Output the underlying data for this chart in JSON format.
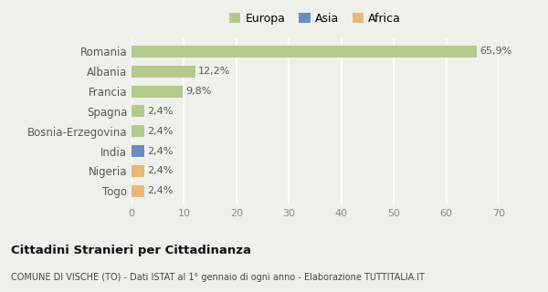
{
  "categories": [
    "Romania",
    "Albania",
    "Francia",
    "Spagna",
    "Bosnia-Erzegovina",
    "India",
    "Nigeria",
    "Togo"
  ],
  "values": [
    65.9,
    12.2,
    9.8,
    2.4,
    2.4,
    2.4,
    2.4,
    2.4
  ],
  "labels": [
    "65,9%",
    "12,2%",
    "9,8%",
    "2,4%",
    "2,4%",
    "2,4%",
    "2,4%",
    "2,4%"
  ],
  "colors": [
    "#b5c98e",
    "#b5c98e",
    "#b5c98e",
    "#b5c98e",
    "#b5c98e",
    "#6b8cbf",
    "#e8b87a",
    "#e8b87a"
  ],
  "legend_labels": [
    "Europa",
    "Asia",
    "Africa"
  ],
  "legend_colors": [
    "#b5c98e",
    "#6b8cbf",
    "#e8b87a"
  ],
  "xlim": [
    0,
    70
  ],
  "xticks": [
    0,
    10,
    20,
    30,
    40,
    50,
    60,
    70
  ],
  "title_bold": "Cittadini Stranieri per Cittadinanza",
  "subtitle": "COMUNE DI VISCHE (TO) - Dati ISTAT al 1° gennaio di ogni anno - Elaborazione TUTTITALIA.IT",
  "background_color": "#f0f0eb",
  "grid_color": "#ffffff",
  "bar_label_fontsize": 8,
  "axis_label_fontsize": 8.5
}
